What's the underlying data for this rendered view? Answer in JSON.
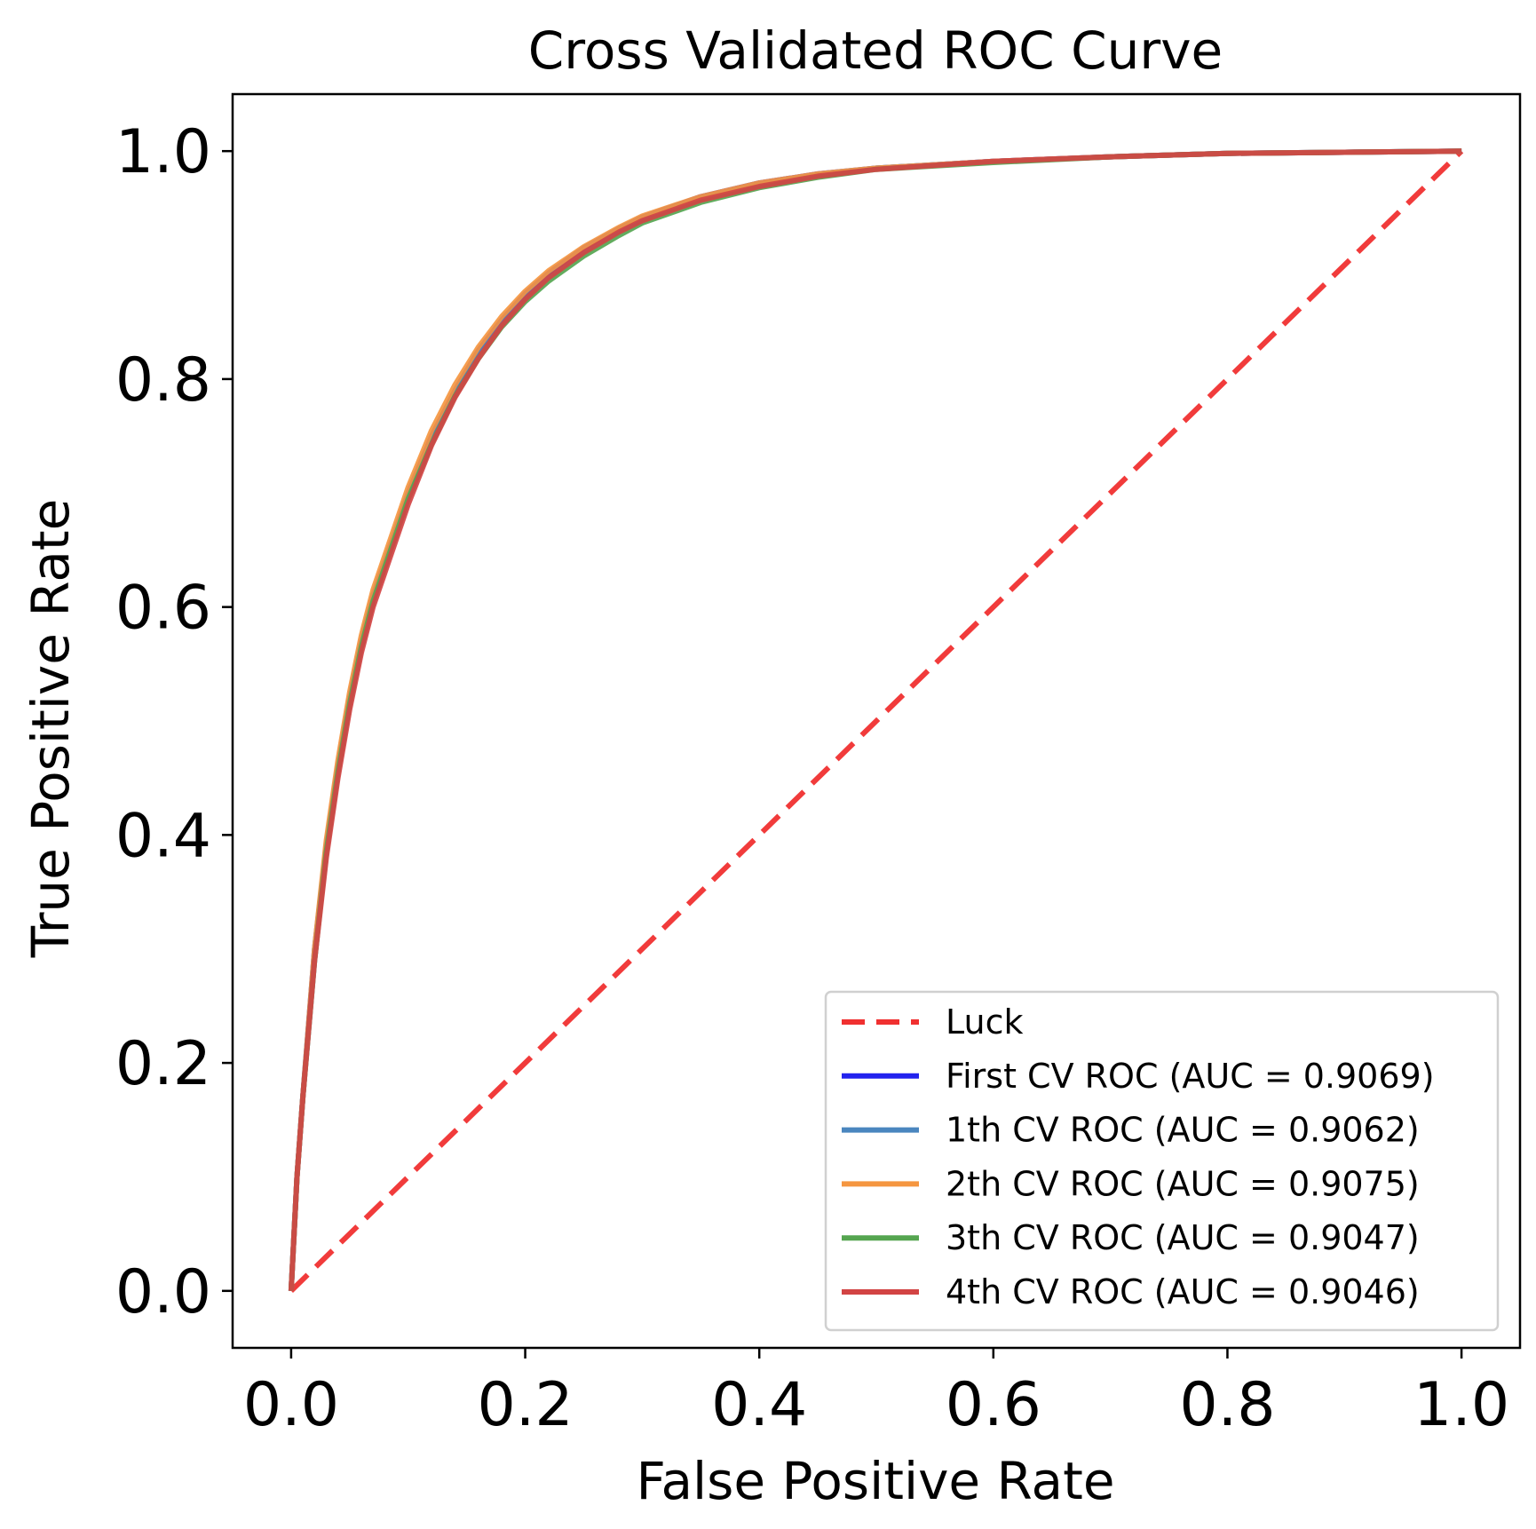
{
  "chart_data": {
    "type": "line",
    "title": "Cross Validated ROC Curve",
    "xlabel": "False Positive Rate",
    "ylabel": "True Positive Rate",
    "xlim": [
      -0.05,
      1.05
    ],
    "ylim": [
      -0.05,
      1.05
    ],
    "xticks": [
      0.0,
      0.2,
      0.4,
      0.6,
      0.8,
      1.0
    ],
    "yticks": [
      0.0,
      0.2,
      0.4,
      0.6,
      0.8,
      1.0
    ],
    "tick_labels_x": [
      "0.0",
      "0.2",
      "0.4",
      "0.6",
      "0.8",
      "1.0"
    ],
    "tick_labels_y": [
      "0.0",
      "0.2",
      "0.4",
      "0.6",
      "0.8",
      "1.0"
    ],
    "grid": false,
    "legend_position": "lower-right",
    "series": [
      {
        "name": "Luck",
        "color": "#f03030",
        "dash": true,
        "x": [
          0,
          1
        ],
        "y": [
          0,
          1
        ]
      },
      {
        "name": "First CV ROC (AUC = 0.9069)",
        "color": "#2222ee",
        "dash": false,
        "x": [
          0,
          0.005,
          0.01,
          0.02,
          0.03,
          0.04,
          0.05,
          0.06,
          0.07,
          0.08,
          0.1,
          0.12,
          0.14,
          0.16,
          0.18,
          0.2,
          0.22,
          0.25,
          0.28,
          0.3,
          0.35,
          0.4,
          0.45,
          0.5,
          0.6,
          0.7,
          0.8,
          0.9,
          1.0
        ],
        "y": [
          0,
          0.1,
          0.17,
          0.3,
          0.39,
          0.46,
          0.52,
          0.57,
          0.61,
          0.64,
          0.7,
          0.75,
          0.79,
          0.825,
          0.852,
          0.875,
          0.893,
          0.915,
          0.932,
          0.942,
          0.96,
          0.972,
          0.98,
          0.985,
          0.991,
          0.995,
          0.998,
          0.999,
          1.0
        ]
      },
      {
        "name": "1th CV ROC (AUC = 0.9062)",
        "color": "#4a86bf",
        "dash": false,
        "x": [
          0,
          0.005,
          0.01,
          0.02,
          0.03,
          0.04,
          0.05,
          0.06,
          0.07,
          0.08,
          0.1,
          0.12,
          0.14,
          0.16,
          0.18,
          0.2,
          0.22,
          0.25,
          0.28,
          0.3,
          0.35,
          0.4,
          0.45,
          0.5,
          0.6,
          0.7,
          0.8,
          0.9,
          1.0
        ],
        "y": [
          0,
          0.1,
          0.17,
          0.29,
          0.385,
          0.455,
          0.515,
          0.565,
          0.605,
          0.635,
          0.695,
          0.745,
          0.787,
          0.822,
          0.849,
          0.872,
          0.89,
          0.912,
          0.93,
          0.94,
          0.958,
          0.97,
          0.979,
          0.985,
          0.991,
          0.995,
          0.998,
          0.999,
          1.0
        ]
      },
      {
        "name": "2th CV ROC (AUC = 0.9075)",
        "color": "#f59640",
        "dash": false,
        "x": [
          0,
          0.005,
          0.01,
          0.02,
          0.03,
          0.04,
          0.05,
          0.06,
          0.07,
          0.08,
          0.1,
          0.12,
          0.14,
          0.16,
          0.18,
          0.2,
          0.22,
          0.25,
          0.28,
          0.3,
          0.35,
          0.4,
          0.45,
          0.5,
          0.6,
          0.7,
          0.8,
          0.9,
          1.0
        ],
        "y": [
          0,
          0.1,
          0.17,
          0.3,
          0.395,
          0.465,
          0.525,
          0.575,
          0.615,
          0.645,
          0.705,
          0.755,
          0.795,
          0.828,
          0.855,
          0.877,
          0.895,
          0.916,
          0.933,
          0.943,
          0.96,
          0.972,
          0.98,
          0.985,
          0.991,
          0.995,
          0.998,
          0.999,
          1.0
        ]
      },
      {
        "name": "3th CV ROC (AUC = 0.9047)",
        "color": "#55a550",
        "dash": false,
        "x": [
          0,
          0.005,
          0.01,
          0.02,
          0.03,
          0.04,
          0.05,
          0.06,
          0.07,
          0.08,
          0.1,
          0.12,
          0.14,
          0.16,
          0.18,
          0.2,
          0.22,
          0.25,
          0.28,
          0.3,
          0.35,
          0.4,
          0.45,
          0.5,
          0.6,
          0.7,
          0.8,
          0.9,
          1.0
        ],
        "y": [
          0,
          0.1,
          0.17,
          0.29,
          0.385,
          0.455,
          0.515,
          0.565,
          0.605,
          0.635,
          0.695,
          0.743,
          0.785,
          0.818,
          0.846,
          0.868,
          0.886,
          0.908,
          0.926,
          0.937,
          0.955,
          0.968,
          0.977,
          0.984,
          0.99,
          0.995,
          0.998,
          0.999,
          1.0
        ]
      },
      {
        "name": "4th CV ROC (AUC = 0.9046)",
        "color": "#d24444",
        "dash": false,
        "x": [
          0,
          0.005,
          0.01,
          0.02,
          0.03,
          0.04,
          0.05,
          0.06,
          0.07,
          0.08,
          0.1,
          0.12,
          0.14,
          0.16,
          0.18,
          0.2,
          0.22,
          0.25,
          0.28,
          0.3,
          0.35,
          0.4,
          0.45,
          0.5,
          0.6,
          0.7,
          0.8,
          0.9,
          1.0
        ],
        "y": [
          0,
          0.1,
          0.17,
          0.29,
          0.38,
          0.45,
          0.51,
          0.56,
          0.6,
          0.63,
          0.69,
          0.742,
          0.784,
          0.818,
          0.847,
          0.87,
          0.889,
          0.911,
          0.929,
          0.939,
          0.957,
          0.969,
          0.978,
          0.984,
          0.991,
          0.995,
          0.998,
          0.999,
          1.0
        ]
      }
    ]
  }
}
